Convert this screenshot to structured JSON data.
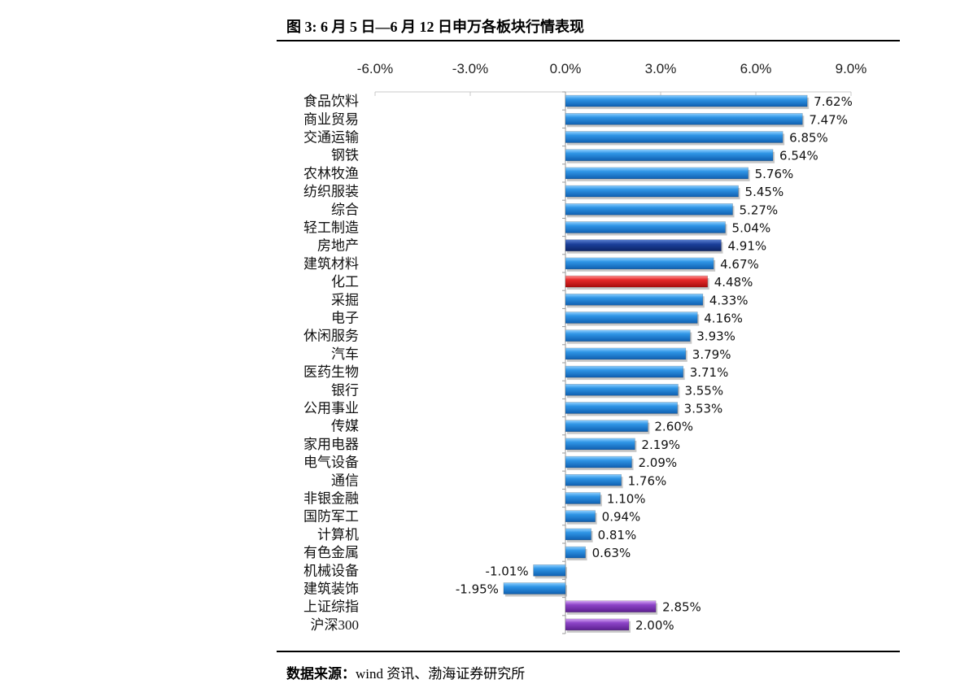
{
  "header": {
    "title": "图 3:  6 月 5 日—6 月 12 日申万各板块行情表现"
  },
  "footer": {
    "source_label": "数据来源：",
    "source_text": "wind 资讯、渤海证券研究所"
  },
  "colors": {
    "sector_bar": "#1f7fd6",
    "highlight_bar": "#e02020",
    "index_bar": "#8a3fc0",
    "dark_bar": "#1b3f9a"
  },
  "chart_data": {
    "type": "bar",
    "orientation": "horizontal",
    "title": "6 月 5 日—6 月 12 日申万各板块行情表现",
    "xlim": [
      -6.0,
      9.0
    ],
    "x_ticks": [
      "-6.0%",
      "-3.0%",
      "0.0%",
      "3.0%",
      "6.0%",
      "9.0%"
    ],
    "x_tick_values": [
      -6,
      -3,
      0,
      3,
      6,
      9
    ],
    "xlabel": "",
    "ylabel": "",
    "grid": false,
    "categories": [
      "食品饮料",
      "商业贸易",
      "交通运输",
      "钢铁",
      "农林牧渔",
      "纺织服装",
      "综合",
      "轻工制造",
      "房地产",
      "建筑材料",
      "化工",
      "采掘",
      "电子",
      "休闲服务",
      "汽车",
      "医药生物",
      "银行",
      "公用事业",
      "传媒",
      "家用电器",
      "电气设备",
      "通信",
      "非银金融",
      "国防军工",
      "计算机",
      "有色金属",
      "机械设备",
      "建筑装饰",
      "上证综指",
      "沪深300"
    ],
    "values": [
      7.62,
      7.47,
      6.85,
      6.54,
      5.76,
      5.45,
      5.27,
      5.04,
      4.91,
      4.67,
      4.48,
      4.33,
      4.16,
      3.93,
      3.79,
      3.71,
      3.55,
      3.53,
      2.6,
      2.19,
      2.09,
      1.76,
      1.1,
      0.94,
      0.81,
      0.63,
      -1.01,
      -1.95,
      2.85,
      2.0
    ],
    "labels": [
      "7.62%",
      "7.47%",
      "6.85%",
      "6.54%",
      "5.76%",
      "5.45%",
      "5.27%",
      "5.04%",
      "4.91%",
      "4.67%",
      "4.48%",
      "4.33%",
      "4.16%",
      "3.93%",
      "3.79%",
      "3.71%",
      "3.55%",
      "3.53%",
      "2.60%",
      "2.19%",
      "2.09%",
      "1.76%",
      "1.10%",
      "0.94%",
      "0.81%",
      "0.63%",
      "-1.01%",
      "-1.95%",
      "2.85%",
      "2.00%"
    ],
    "bar_color_keys": [
      "sector",
      "sector",
      "sector",
      "sector",
      "sector",
      "sector",
      "sector",
      "sector",
      "dark",
      "sector",
      "highlight",
      "sector",
      "sector",
      "sector",
      "sector",
      "sector",
      "sector",
      "sector",
      "sector",
      "sector",
      "sector",
      "sector",
      "sector",
      "sector",
      "sector",
      "sector",
      "sector",
      "sector",
      "index",
      "index"
    ]
  }
}
